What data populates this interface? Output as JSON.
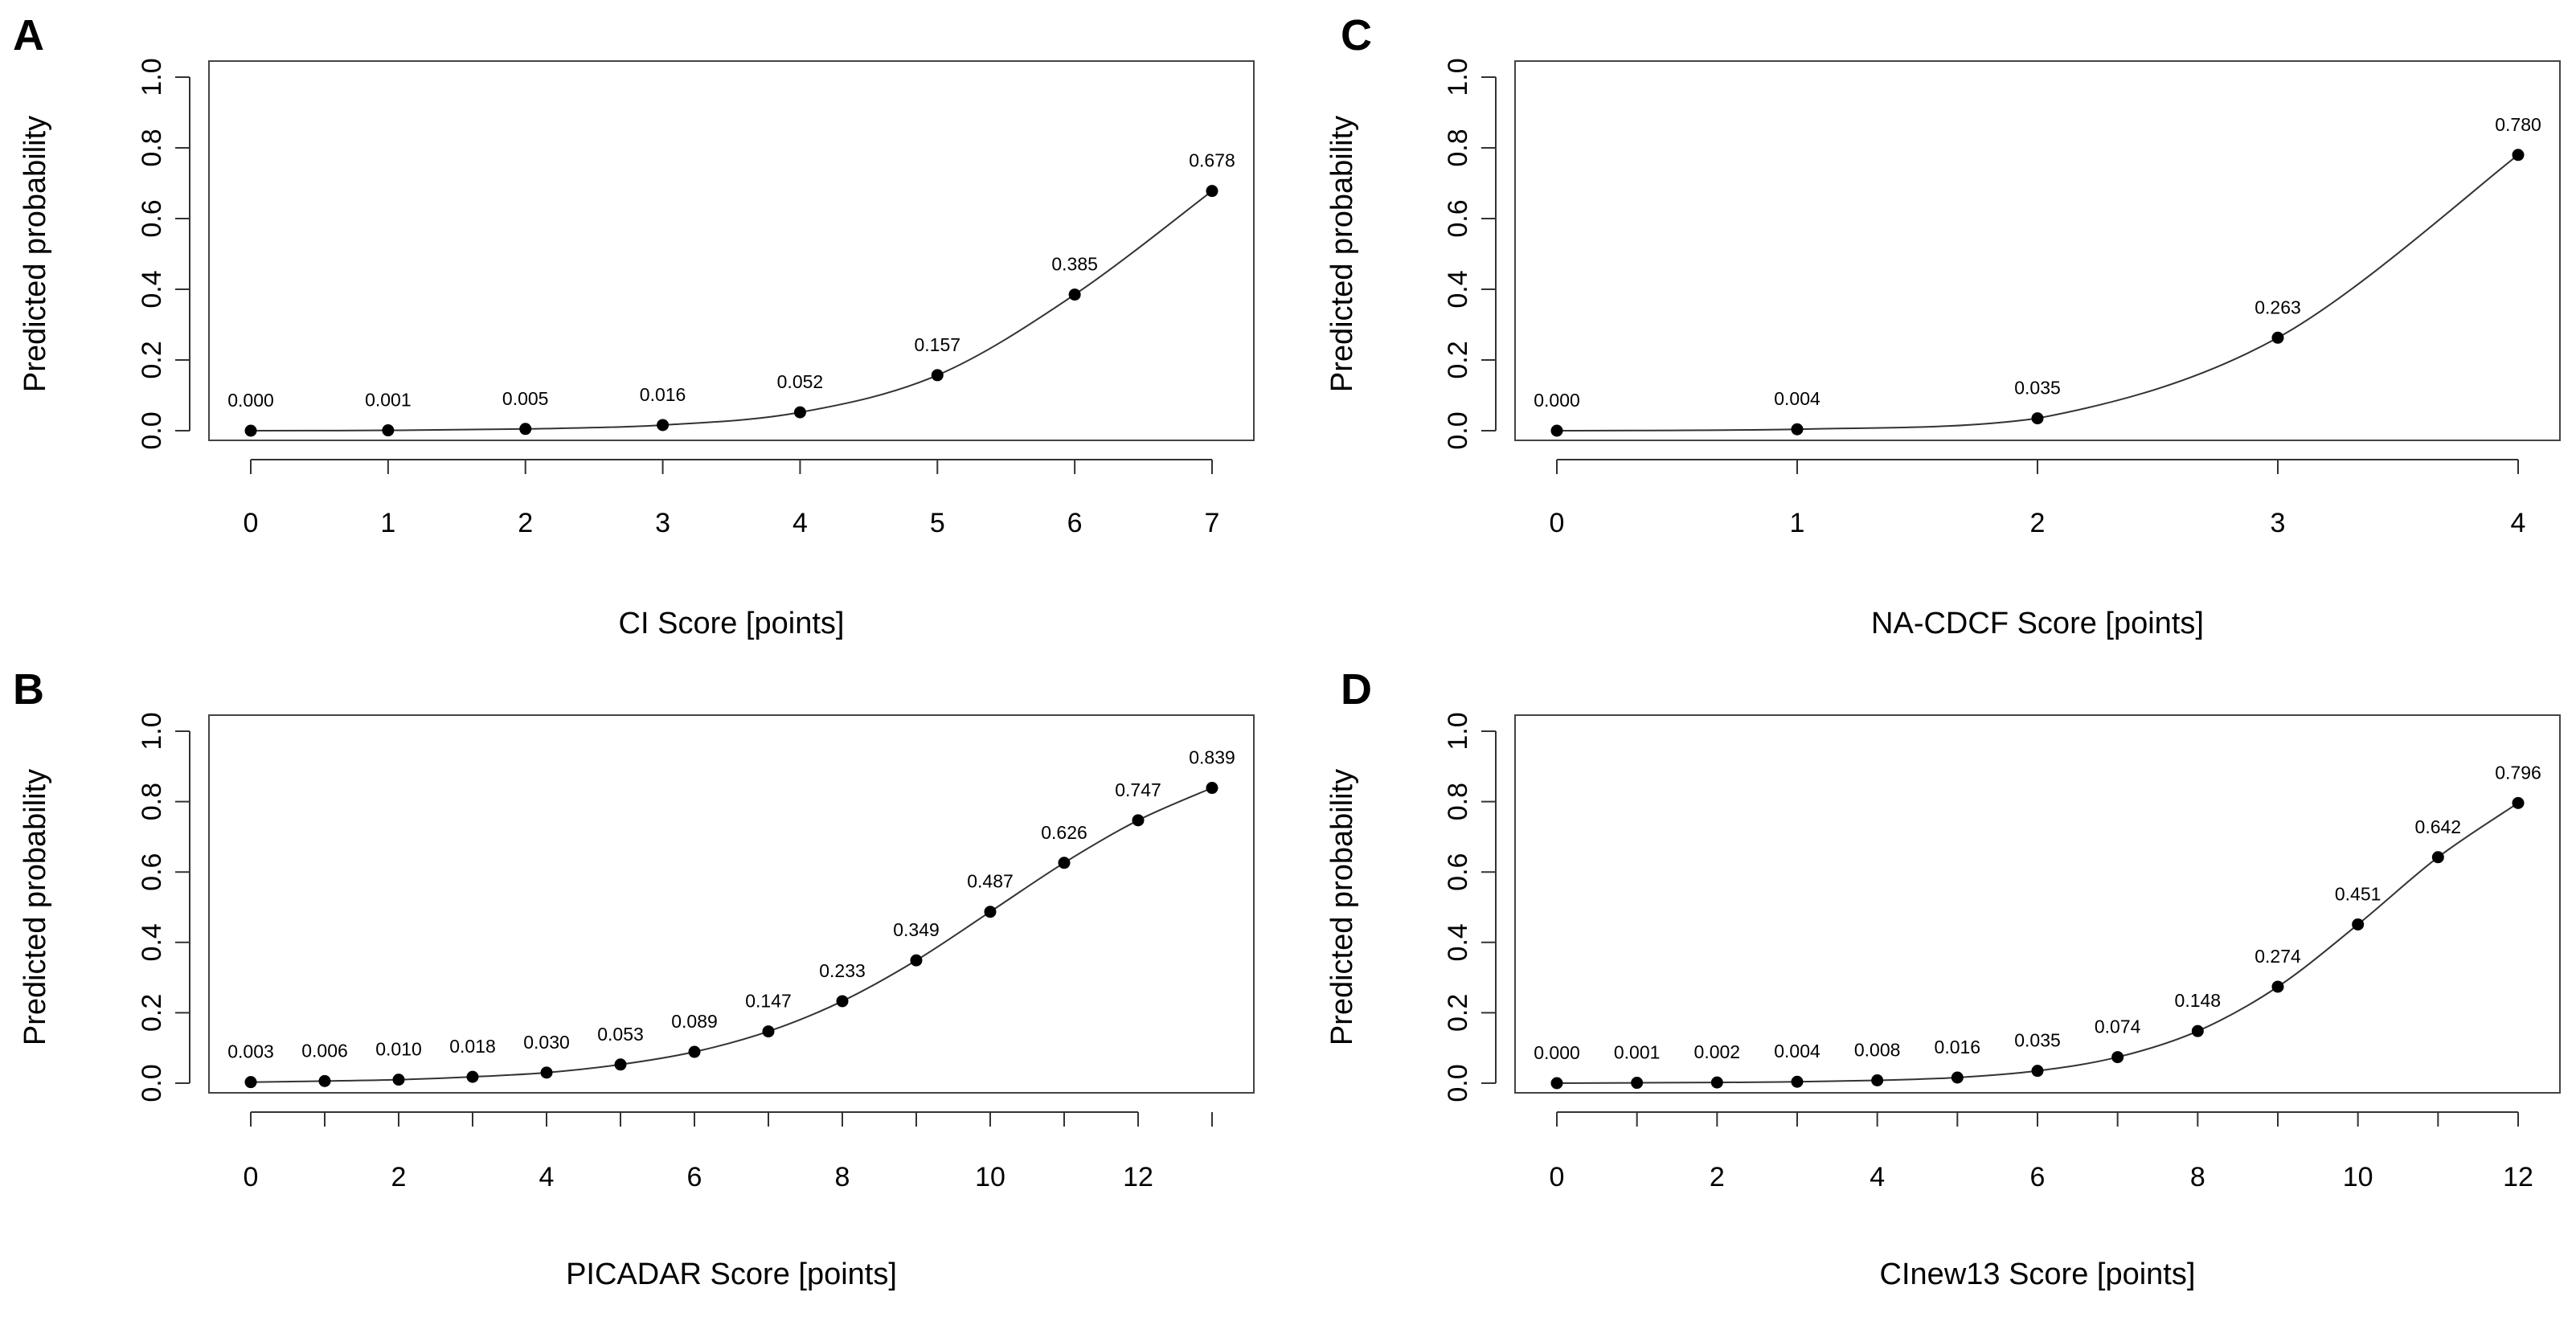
{
  "chart_data": [
    {
      "panel": "A",
      "type": "line",
      "xlabel": "CI Score [points]",
      "ylabel": "Predicted probability",
      "xlim": [
        0,
        7
      ],
      "ylim": [
        0,
        1
      ],
      "x_ticks": [
        0,
        1,
        2,
        3,
        4,
        5,
        6,
        7
      ],
      "y_ticks": [
        "0.0",
        "0.2",
        "0.4",
        "0.6",
        "0.8",
        "1.0"
      ],
      "x": [
        0,
        1,
        2,
        3,
        4,
        5,
        6,
        7
      ],
      "y": [
        0.0,
        0.001,
        0.005,
        0.016,
        0.052,
        0.157,
        0.385,
        0.678
      ],
      "labels": [
        "0.000",
        "0.001",
        "0.005",
        "0.016",
        "0.052",
        "0.157",
        "0.385",
        "0.678"
      ]
    },
    {
      "panel": "B",
      "type": "line",
      "xlabel": "PICADAR Score [points]",
      "ylabel": "Predicted probability",
      "xlim": [
        0,
        13
      ],
      "ylim": [
        0,
        1
      ],
      "x_ticks": [
        0,
        2,
        4,
        6,
        8,
        10,
        12
      ],
      "y_ticks": [
        "0.0",
        "0.2",
        "0.4",
        "0.6",
        "0.8",
        "1.0"
      ],
      "x": [
        0,
        1,
        2,
        3,
        4,
        5,
        6,
        7,
        8,
        9,
        10,
        11,
        12,
        13
      ],
      "y": [
        0.003,
        0.006,
        0.01,
        0.018,
        0.03,
        0.053,
        0.089,
        0.147,
        0.233,
        0.349,
        0.487,
        0.626,
        0.747,
        0.839
      ],
      "labels": [
        "0.003",
        "0.006",
        "0.010",
        "0.018",
        "0.030",
        "0.053",
        "0.089",
        "0.147",
        "0.233",
        "0.349",
        "0.487",
        "0.626",
        "0.747",
        "0.839"
      ]
    },
    {
      "panel": "C",
      "type": "line",
      "xlabel": "NA-CDCF Score [points]",
      "ylabel": "Predicted probability",
      "xlim": [
        0,
        4
      ],
      "ylim": [
        0,
        1
      ],
      "x_ticks": [
        0,
        1,
        2,
        3,
        4
      ],
      "y_ticks": [
        "0.0",
        "0.2",
        "0.4",
        "0.6",
        "0.8",
        "1.0"
      ],
      "x": [
        0,
        1,
        2,
        3,
        4
      ],
      "y": [
        0.0,
        0.004,
        0.035,
        0.263,
        0.78
      ],
      "labels": [
        "0.000",
        "0.004",
        "0.035",
        "0.263",
        "0.780"
      ]
    },
    {
      "panel": "D",
      "type": "line",
      "xlabel": "CInew13 Score [points]",
      "ylabel": "Predicted probability",
      "xlim": [
        0,
        12
      ],
      "ylim": [
        0,
        1
      ],
      "x_ticks": [
        0,
        2,
        4,
        6,
        8,
        10,
        12
      ],
      "y_ticks": [
        "0.0",
        "0.2",
        "0.4",
        "0.6",
        "0.8",
        "1.0"
      ],
      "x": [
        0,
        1,
        2,
        3,
        4,
        5,
        6,
        7,
        8,
        9,
        10,
        11,
        12
      ],
      "y": [
        0.0,
        0.001,
        0.002,
        0.004,
        0.008,
        0.016,
        0.035,
        0.074,
        0.148,
        0.274,
        0.451,
        0.642,
        0.796
      ],
      "labels": [
        "0.000",
        "0.001",
        "0.002",
        "0.004",
        "0.008",
        "0.016",
        "0.035",
        "0.074",
        "0.148",
        "0.274",
        "0.451",
        "0.642",
        "0.796"
      ]
    }
  ]
}
